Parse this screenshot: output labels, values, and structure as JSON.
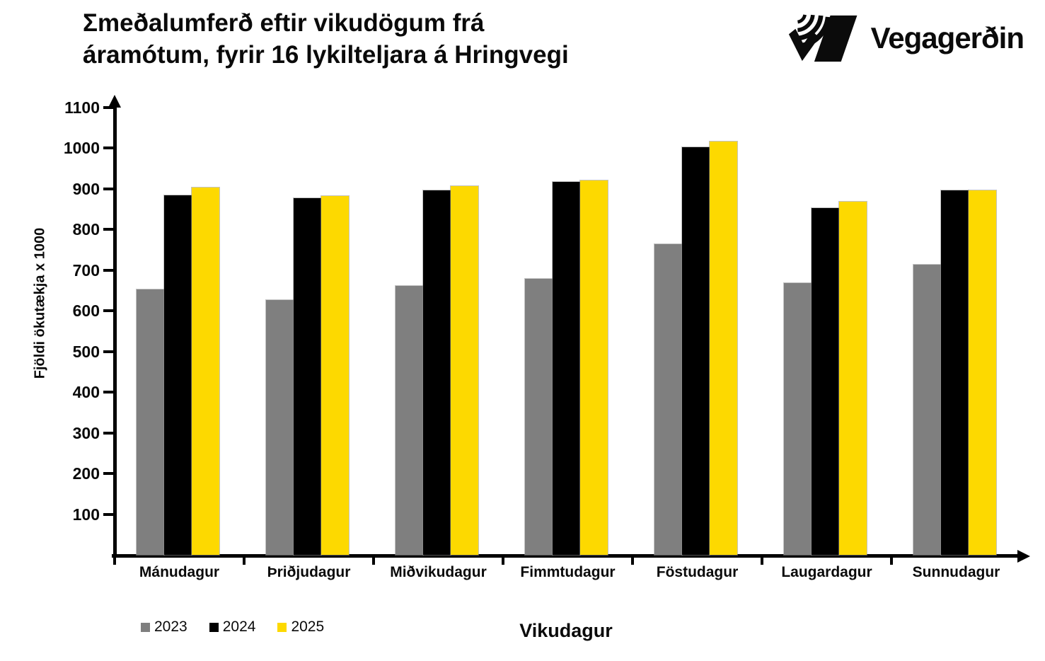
{
  "header": {
    "title_line1": "Σmeðalumferð eftir vikudögum frá",
    "title_line2": "áramótum, fyrir 16 lykilteljara á Hringvegi",
    "logo": {
      "text": "Vegagerðin",
      "icon": "vegagerdin-striped-road-icon",
      "color": "#0b0b0b"
    }
  },
  "chart_data": {
    "type": "bar",
    "title": "Σmeðalumferð eftir vikudögum frá áramótum, fyrir 16 lykilteljara á Hringvegi",
    "xlabel": "Vikudagur",
    "ylabel": "Fjöldi ökutækja x 1000",
    "ylim": [
      0,
      1100
    ],
    "yticks": [
      100,
      200,
      300,
      400,
      500,
      600,
      700,
      800,
      900,
      1000,
      1100
    ],
    "grid": false,
    "legend_position": "bottom-left",
    "axis_color": "#000000",
    "categories": [
      "Mánudagur",
      "Þriðjudagur",
      "Miðvikudagur",
      "Fimmtudagur",
      "Föstudagur",
      "Laugardagur",
      "Sunnudagur"
    ],
    "series": [
      {
        "name": "2023",
        "color": "#7F7F7F",
        "values": [
          653,
          626,
          662,
          679,
          764,
          669,
          714
        ]
      },
      {
        "name": "2024",
        "color": "#000000",
        "values": [
          885,
          878,
          897,
          917,
          1003,
          852,
          896
        ]
      },
      {
        "name": "2025",
        "color": "#FDD900",
        "values": [
          903,
          882,
          906,
          920,
          1016,
          868,
          897
        ]
      }
    ]
  }
}
